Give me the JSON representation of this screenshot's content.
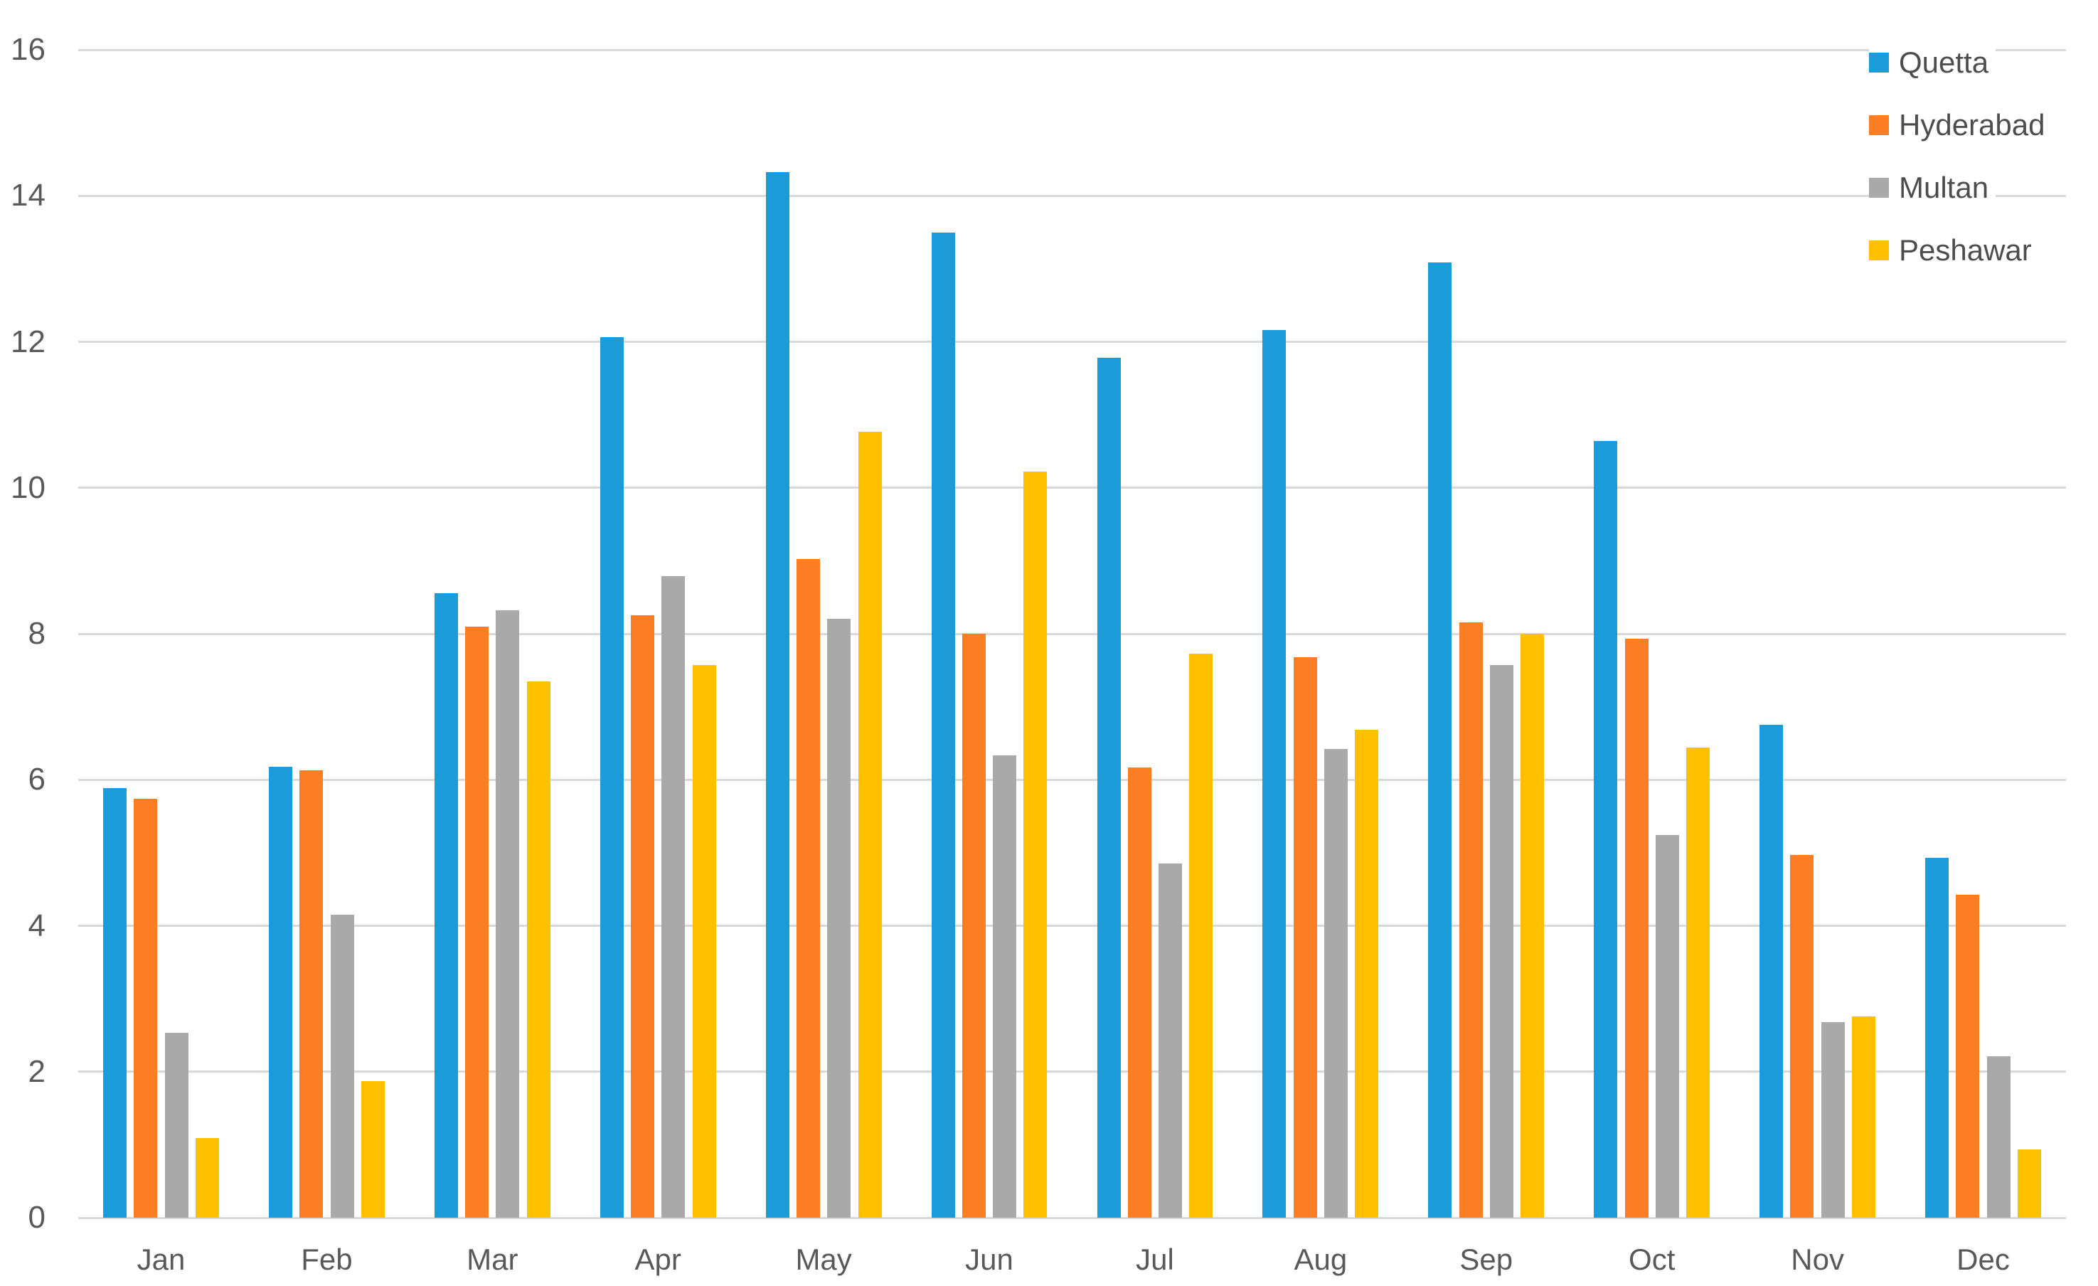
{
  "chart_data": {
    "type": "bar",
    "title": "",
    "categories": [
      "Jan",
      "Feb",
      "Mar",
      "Apr",
      "May",
      "Jun",
      "Jul",
      "Aug",
      "Sep",
      "Oct",
      "Nov",
      "Dec"
    ],
    "series": [
      {
        "name": "Quetta",
        "color": "#1b9bd8",
        "values": [
          5.89,
          6.18,
          8.56,
          12.06,
          14.32,
          13.5,
          11.78,
          12.16,
          13.09,
          10.64,
          6.75,
          4.93
        ]
      },
      {
        "name": "Hyderabad",
        "color": "#fc7d23",
        "values": [
          5.74,
          6.13,
          8.1,
          8.25,
          9.02,
          8.0,
          6.17,
          7.68,
          8.16,
          7.93,
          4.97,
          4.42
        ]
      },
      {
        "name": "Multan",
        "color": "#a9a9a9",
        "values": [
          2.53,
          4.15,
          8.32,
          8.79,
          8.2,
          6.33,
          4.85,
          6.42,
          7.57,
          5.24,
          2.68,
          2.21
        ]
      },
      {
        "name": "Peshawar",
        "color": "#ffc000",
        "values": [
          1.09,
          1.87,
          7.35,
          7.57,
          10.77,
          10.22,
          7.73,
          6.68,
          8.0,
          6.44,
          2.76,
          0.94
        ]
      }
    ],
    "xlabel": "",
    "ylabel": "",
    "ylim": [
      0,
      16
    ],
    "yticks": [
      0,
      2,
      4,
      6,
      8,
      10,
      12,
      14,
      16
    ],
    "grid": true,
    "legend_position": "top-right"
  }
}
